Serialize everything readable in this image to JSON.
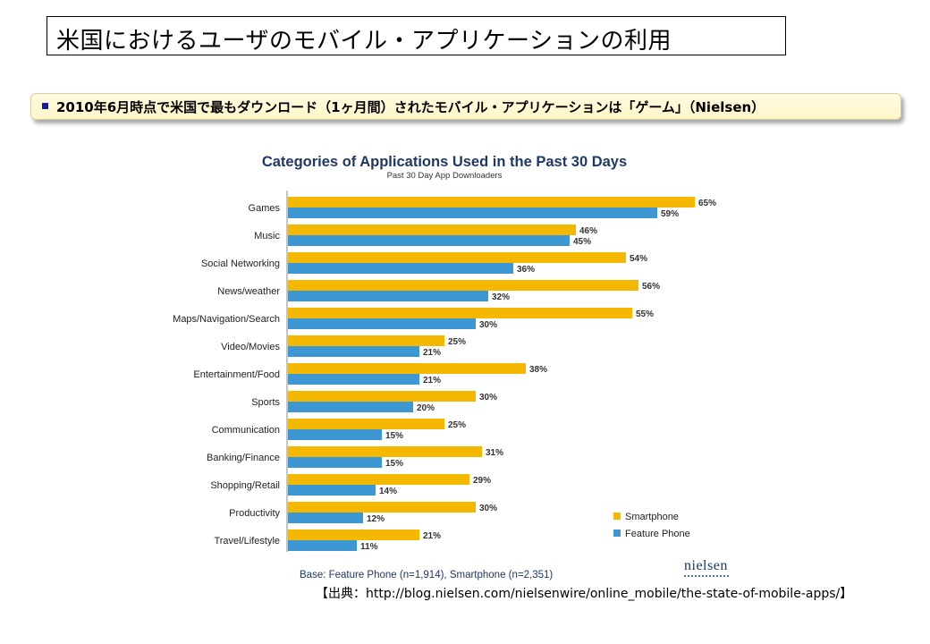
{
  "page": {
    "title": "米国におけるユーザのモバイル・アプリケーションの利用",
    "banner": "2010年6月時点で米国で最もダウンロード（1ヶ月間）されたモバイル・アプリケーションは「ゲーム」（Nielsen）",
    "source": "【出典：http://blog.nielsen.com/nielsenwire/online_mobile/the-state-of-mobile-apps/】",
    "logo_text": "nielsen"
  },
  "colors": {
    "smartphone": "#f5b800",
    "feature_phone": "#3c97d3",
    "bullet": "#1a1aa6",
    "title": "#1f3864"
  },
  "chart_data": {
    "type": "bar",
    "orientation": "horizontal",
    "title": "Categories of Applications Used in the Past 30 Days",
    "subtitle": "Past 30 Day App Downloaders",
    "categories": [
      "Games",
      "Music",
      "Social Networking",
      "News/weather",
      "Maps/Navigation/Search",
      "Video/Movies",
      "Entertainment/Food",
      "Sports",
      "Communication",
      "Banking/Finance",
      "Shopping/Retail",
      "Productivity",
      "Travel/Lifestyle"
    ],
    "series": [
      {
        "name": "Smartphone",
        "values": [
          65,
          46,
          54,
          56,
          55,
          25,
          38,
          30,
          25,
          31,
          29,
          30,
          21
        ]
      },
      {
        "name": "Feature Phone",
        "values": [
          59,
          45,
          36,
          32,
          30,
          21,
          21,
          20,
          15,
          15,
          14,
          12,
          11
        ]
      }
    ],
    "value_suffix": "%",
    "legend_position": "bottom-right",
    "grid": false,
    "footnote": "Base: Feature Phone (n=1,914), Smartphone (n=2,351)"
  }
}
